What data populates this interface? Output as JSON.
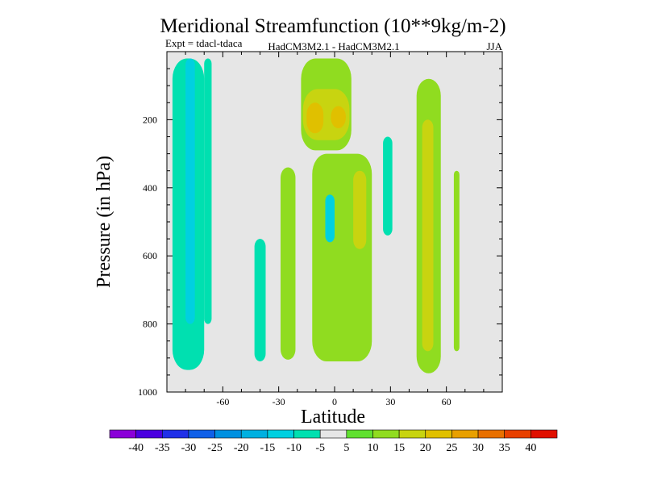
{
  "chart_data": {
    "type": "heatmap",
    "title": "Meridional Streamfunction (10**9kg/m-2)",
    "experiment_label": "Expt = tdacl-tdaca",
    "model_label": "HadCM3M2.1 - HadCM3M2.1",
    "season_label": "JJA",
    "xlabel": "Latitude",
    "ylabel": "Pressure (in hPa)",
    "xlim": [
      -90,
      90
    ],
    "ylim": [
      1000,
      0
    ],
    "x_ticks": [
      -60,
      -30,
      0,
      30,
      60
    ],
    "x_tick_labels": [
      "-60",
      "-30",
      "0",
      "30",
      "60"
    ],
    "y_ticks": [
      200,
      400,
      600,
      800,
      1000
    ],
    "y_tick_labels": [
      "200",
      "400",
      "600",
      "800",
      "1000"
    ],
    "background_color": "#e6e6e6",
    "contour_levels": [
      -40,
      -35,
      -30,
      -25,
      -20,
      -15,
      -10,
      -5,
      5,
      10,
      15,
      20,
      25,
      30,
      35,
      40
    ],
    "colorbar": {
      "tick_labels": [
        "-40",
        "-35",
        "-30",
        "-25",
        "-20",
        "-15",
        "-10",
        "-5",
        "5",
        "10",
        "15",
        "20",
        "25",
        "30",
        "35",
        "40"
      ],
      "colors": [
        "#8a00d8",
        "#4a00e0",
        "#2030e8",
        "#1060e8",
        "#0090e0",
        "#00b0e0",
        "#00d0e0",
        "#00e0b0",
        "#e6e6e6",
        "#60e030",
        "#90dc20",
        "#c8d410",
        "#e0c000",
        "#e8a000",
        "#e87000",
        "#e84000",
        "#e01000"
      ]
    },
    "regions": [
      {
        "name": "sh-midlat-negative-band",
        "lat": [
          -87,
          -70
        ],
        "p": [
          20,
          935
        ],
        "value": -10
      },
      {
        "name": "sh-midlat-negative-core",
        "lat": [
          -80,
          -75
        ],
        "p": [
          20,
          800
        ],
        "value": -15
      },
      {
        "name": "sh-narrow-negative-band",
        "lat": [
          -70,
          -66
        ],
        "p": [
          20,
          800
        ],
        "value": -10
      },
      {
        "name": "sh-subtropics-negative",
        "lat": [
          -43,
          -37
        ],
        "p": [
          550,
          910
        ],
        "value": -10
      },
      {
        "name": "sh-tropics-positive",
        "lat": [
          -29,
          -21
        ],
        "p": [
          340,
          905
        ],
        "value": 10
      },
      {
        "name": "upper-tropics-positive",
        "lat": [
          -18,
          9
        ],
        "p": [
          20,
          290
        ],
        "value": 10
      },
      {
        "name": "upper-tropics-positive-ring",
        "lat": [
          -17,
          8
        ],
        "p": [
          110,
          260
        ],
        "value": 15
      },
      {
        "name": "upper-tropics-core-west",
        "lat": [
          -15,
          -6
        ],
        "p": [
          150,
          240
        ],
        "value": 20
      },
      {
        "name": "upper-tropics-core-east",
        "lat": [
          -2,
          6
        ],
        "p": [
          160,
          225
        ],
        "value": 20
      },
      {
        "name": "equatorial-negative",
        "lat": [
          -9,
          8
        ],
        "p": [
          360,
          870
        ],
        "value": -10
      },
      {
        "name": "equatorial-negative-core",
        "lat": [
          -5,
          0
        ],
        "p": [
          420,
          560
        ],
        "value": -15
      },
      {
        "name": "equatorial-positive-band",
        "lat": [
          -12,
          20
        ],
        "p": [
          300,
          910
        ],
        "value": 10
      },
      {
        "name": "nh-tropics-positive-core",
        "lat": [
          10,
          17
        ],
        "p": [
          350,
          580
        ],
        "value": 15
      },
      {
        "name": "nh-subtropics-negative",
        "lat": [
          26,
          31
        ],
        "p": [
          250,
          540
        ],
        "value": -10
      },
      {
        "name": "nh-midlat-positive-band",
        "lat": [
          44,
          57
        ],
        "p": [
          80,
          945
        ],
        "value": 10
      },
      {
        "name": "nh-midlat-positive-core",
        "lat": [
          47,
          53
        ],
        "p": [
          200,
          880
        ],
        "value": 15
      },
      {
        "name": "nh-midlat-positive-narrow",
        "lat": [
          64,
          67
        ],
        "p": [
          350,
          880
        ],
        "value": 10
      }
    ]
  }
}
